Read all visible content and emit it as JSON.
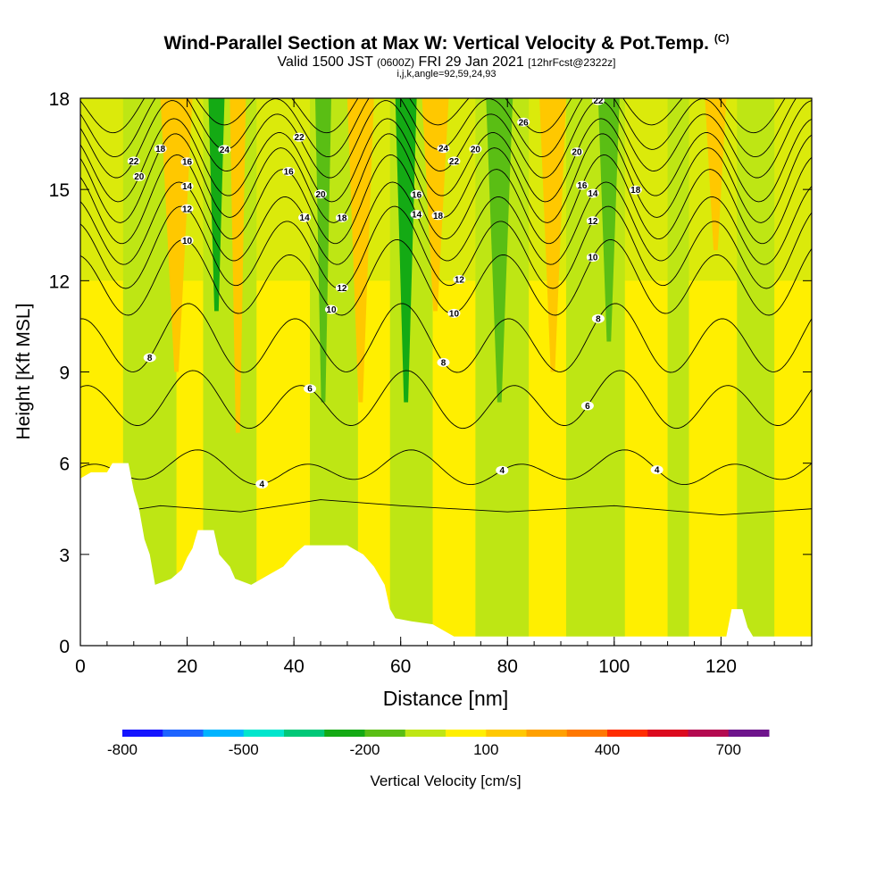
{
  "title": {
    "main": "Wind-Parallel Section at Max W: Vertical Velocity & Pot.Temp.",
    "copyright": "(C)",
    "valid_prefix": "Valid 1500 JST",
    "valid_z": "(0600Z)",
    "valid_date": "FRI 29 Jan 2021",
    "forecast": "[12hrFcst@2322z]",
    "params": "i,j,k,angle=92,59,24,93"
  },
  "chart_data": {
    "type": "heatmap",
    "xlabel": "Distance [nm]",
    "ylabel": "Height [Kft MSL]",
    "xlim": [
      0,
      137
    ],
    "ylim": [
      0,
      18
    ],
    "x_ticks": [
      "0",
      "20",
      "40",
      "60",
      "80",
      "100",
      "120"
    ],
    "y_ticks": [
      "0",
      "3",
      "6",
      "9",
      "12",
      "15",
      "18"
    ],
    "colorbar": {
      "title": "Vertical Velocity [cm/s]",
      "tick_labels": [
        "-800",
        "-500",
        "-200",
        "100",
        "400",
        "700"
      ],
      "colors": [
        "#1414ff",
        "#1e64ff",
        "#00b4ff",
        "#00e6cd",
        "#00c878",
        "#14aa14",
        "#5abe14",
        "#bee614",
        "#ffef00",
        "#ffc800",
        "#ffa000",
        "#ff7800",
        "#ff2d00",
        "#dc0a1e",
        "#b40a50",
        "#6e148c"
      ]
    },
    "velocity_bands": [
      {
        "x": 15,
        "w": 6,
        "color": "#ffc800",
        "top": 18,
        "bottom": 9
      },
      {
        "x": 24,
        "w": 3,
        "color": "#14aa14",
        "top": 18,
        "bottom": 11
      },
      {
        "x": 28,
        "w": 3,
        "color": "#ffc800",
        "top": 18,
        "bottom": 7
      },
      {
        "x": 44,
        "w": 3,
        "color": "#5abe14",
        "top": 18,
        "bottom": 8
      },
      {
        "x": 50,
        "w": 5,
        "color": "#ffc800",
        "top": 18,
        "bottom": 8
      },
      {
        "x": 59,
        "w": 4,
        "color": "#14aa14",
        "top": 18,
        "bottom": 8
      },
      {
        "x": 64,
        "w": 5,
        "color": "#ffc800",
        "top": 18,
        "bottom": 11
      },
      {
        "x": 76,
        "w": 5,
        "color": "#5abe14",
        "top": 18,
        "bottom": 8
      },
      {
        "x": 86,
        "w": 5,
        "color": "#ffc800",
        "top": 18,
        "bottom": 9
      },
      {
        "x": 97,
        "w": 4,
        "color": "#5abe14",
        "top": 18,
        "bottom": 10
      },
      {
        "x": 117,
        "w": 4,
        "color": "#ffc800",
        "top": 18,
        "bottom": 13
      }
    ],
    "terrain": [
      [
        0,
        5.5
      ],
      [
        2,
        5.7
      ],
      [
        5,
        5.7
      ],
      [
        6,
        6.0
      ],
      [
        9,
        6.0
      ],
      [
        10,
        5.1
      ],
      [
        11,
        4.5
      ],
      [
        12,
        3.5
      ],
      [
        13,
        3.0
      ],
      [
        14,
        2.0
      ],
      [
        17,
        2.2
      ],
      [
        19,
        2.5
      ],
      [
        20,
        2.9
      ],
      [
        21,
        3.2
      ],
      [
        22,
        3.8
      ],
      [
        25,
        3.8
      ],
      [
        26,
        3.0
      ],
      [
        28,
        2.6
      ],
      [
        29,
        2.2
      ],
      [
        32,
        2.0
      ],
      [
        35,
        2.3
      ],
      [
        38,
        2.6
      ],
      [
        40,
        3.0
      ],
      [
        42,
        3.3
      ],
      [
        45,
        3.3
      ],
      [
        50,
        3.3
      ],
      [
        53,
        3.0
      ],
      [
        55,
        2.6
      ],
      [
        57,
        2.0
      ],
      [
        58,
        1.2
      ],
      [
        59,
        0.9
      ],
      [
        62,
        0.8
      ],
      [
        66,
        0.7
      ],
      [
        70,
        0.3
      ],
      [
        121,
        0.3
      ],
      [
        122,
        1.2
      ],
      [
        124,
        1.2
      ],
      [
        125,
        0.6
      ],
      [
        126,
        0.3
      ],
      [
        137,
        0.3
      ]
    ],
    "contour_lines": [
      {
        "label": "4",
        "y": 5.8,
        "amp": 0.4,
        "label_x": 34,
        "label_x2": 79,
        "label_x3": 108
      },
      {
        "label": "6",
        "y": 8.0,
        "amp": 0.8,
        "label_x": 43,
        "label_x2": 95
      },
      {
        "label": "8",
        "y": 10.0,
        "amp": 1.0,
        "label_x": 13,
        "label_x2": 68,
        "label_x3": 97
      },
      {
        "label": "10",
        "y": 12.0,
        "amp": 1.1,
        "label_x": 20,
        "label_x2": 47,
        "label_x3": 70,
        "label_x4": 96
      },
      {
        "label": "12",
        "y": 13.0,
        "amp": 1.2,
        "label_x": 20,
        "label_x2": 49,
        "label_x3": 71,
        "label_x4": 96
      },
      {
        "label": "14",
        "y": 13.8,
        "amp": 1.2,
        "label_x": 20,
        "label_x2": 42,
        "label_x3": 63,
        "label_x4": 96
      },
      {
        "label": "16",
        "y": 14.6,
        "amp": 1.3,
        "label_x": 20,
        "label_x2": 39,
        "label_x3": 63,
        "label_x4": 94
      },
      {
        "label": "18",
        "y": 15.3,
        "amp": 1.3,
        "label_x": 15,
        "label_x2": 49,
        "label_x3": 67,
        "label_x4": 104
      },
      {
        "label": "20",
        "y": 15.9,
        "amp": 1.2,
        "label_x": 11,
        "label_x2": 45,
        "label_x3": 74,
        "label_x4": 93
      },
      {
        "label": "22",
        "y": 16.6,
        "amp": 1.1,
        "label_x": 10,
        "label_x2": 41,
        "label_x3": 70,
        "label_x4": 97
      },
      {
        "label": "24",
        "y": 17.2,
        "amp": 1.0,
        "label_x": 27,
        "label_x2": 68,
        "label_x3": 97
      },
      {
        "label": "26",
        "y": 17.8,
        "amp": 0.8,
        "label_x": 83
      }
    ]
  }
}
